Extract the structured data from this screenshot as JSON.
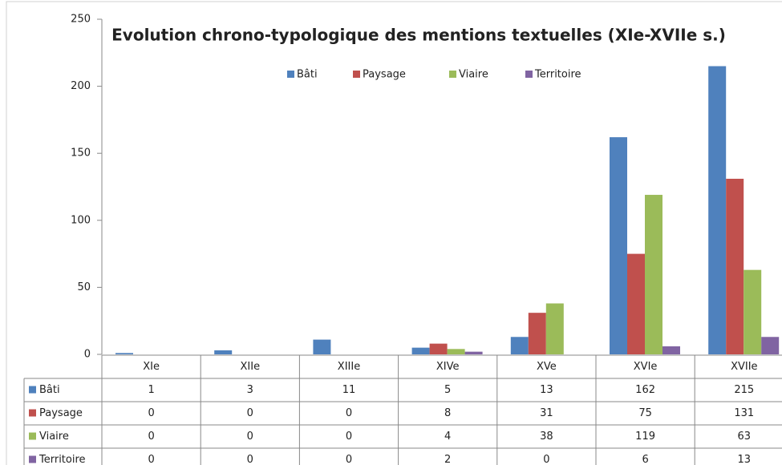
{
  "chart_data": {
    "type": "bar",
    "title": "Evolution chrono-typologique des mentions textuelles (XIe-XVIIe s.)",
    "categories": [
      "XIe",
      "XIIe",
      "XIIIe",
      "XIVe",
      "XVe",
      "XVIe",
      "XVIIe"
    ],
    "series": [
      {
        "name": "Bâti",
        "color": "#4f81bd",
        "values": [
          1,
          3,
          11,
          5,
          13,
          162,
          215
        ]
      },
      {
        "name": "Paysage",
        "color": "#c0504d",
        "values": [
          0,
          0,
          0,
          8,
          31,
          75,
          131
        ]
      },
      {
        "name": "Viaire",
        "color": "#9bbb59",
        "values": [
          0,
          0,
          0,
          4,
          38,
          119,
          63
        ]
      },
      {
        "name": "Territoire",
        "color": "#8064a2",
        "values": [
          0,
          0,
          0,
          2,
          0,
          6,
          13
        ]
      }
    ],
    "ylim": [
      0,
      250
    ],
    "yticks": [
      0,
      50,
      100,
      150,
      200,
      250
    ],
    "grid": false,
    "legend": "top"
  }
}
